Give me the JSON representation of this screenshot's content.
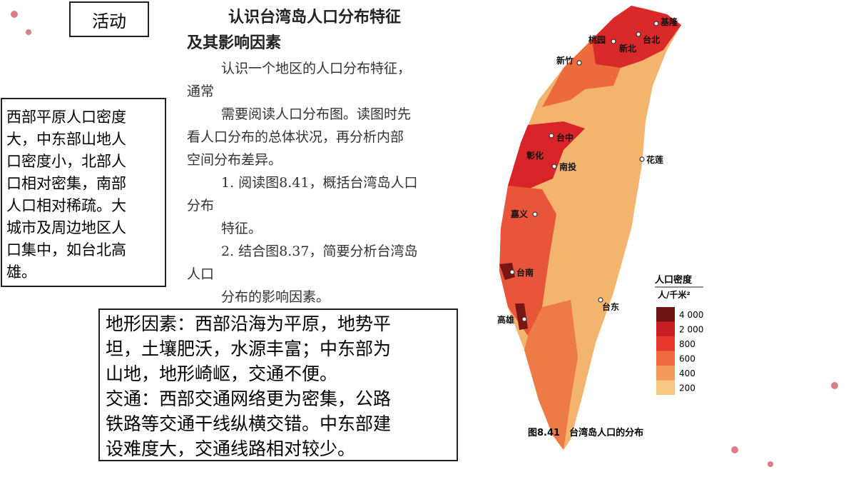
{
  "activity_label": "活动",
  "title": [
    "认识台湾岛人口分布特征",
    "及其影响因素"
  ],
  "body": [
    "认识一个地区的人口分布特征，",
    "通常",
    "需要阅读人口分布图。读图时先",
    "看人口分布的总体状况，再分析内部",
    "空间分布差异。",
    "1. 阅读图8.41，概括台湾岛人口",
    "分布",
    "特征。",
    "2. 结合图8.37，简要分析台湾岛",
    "人口",
    "分布的影响因素。"
  ],
  "left_box": [
    "西部平原人口密度",
    "大，中东部山地人",
    "口密度小，北部人",
    "口相对密集，南部",
    "人口相对稀疏。大",
    "城市及周边地区人",
    "口集中，如台北高",
    "雄。"
  ],
  "bottom_box": [
    "地形因素：西部沿海为平原，地势平",
    "坦，土壤肥沃，水源丰富；中东部为",
    "山地，地形崎岖，交通不便。",
    "交通：西部交通网络更为密集，公路",
    "铁路等交通干线纵横交错。中东部建",
    "设难度大，交通线路相对较少。"
  ],
  "map": {
    "cities": [
      "基隆",
      "桃园",
      "台北",
      "新北",
      "新竹",
      "台中",
      "彰化",
      "南投",
      "花莲",
      "嘉义",
      "台南",
      "高雄",
      "台东"
    ],
    "legend_title": "人口密度",
    "legend_unit": "人/千米²",
    "legend_labels": [
      "4 000",
      "2 000",
      "800",
      "600",
      "400",
      "200"
    ],
    "caption": "图8.41　台湾岛人口的分布"
  }
}
